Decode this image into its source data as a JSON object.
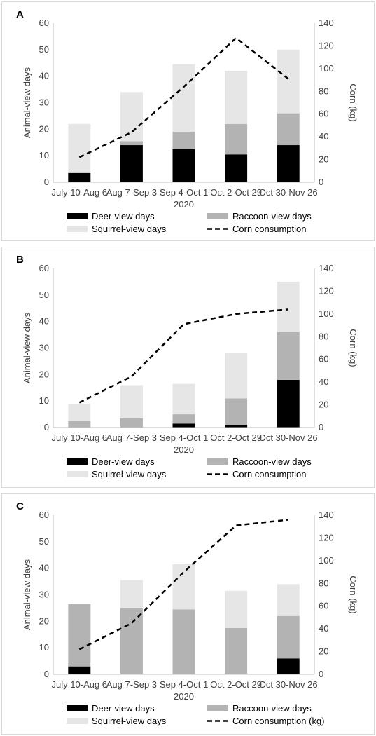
{
  "colors": {
    "deer": "#000000",
    "raccoon": "#b3b3b3",
    "squirrel": "#e6e6e6",
    "corn": "#000000",
    "axis": "#bfbfbf"
  },
  "chart_data": [
    {
      "type": "bar",
      "panel_label": "A",
      "categories": [
        "July 10-Aug 6",
        "Aug 7-Sep 3",
        "Sep 4-Oct 1",
        "Oct 2-Oct 29",
        "Oct 30-Nov 26"
      ],
      "xlabel": "2020",
      "ylabel": "Animal-view days",
      "y2label": "Corn (kg)",
      "ylim": [
        0,
        60
      ],
      "yticks": [
        0,
        10,
        20,
        30,
        40,
        50,
        60
      ],
      "y2lim": [
        0,
        140
      ],
      "y2ticks": [
        0,
        20,
        40,
        60,
        80,
        100,
        120,
        140
      ],
      "stacked": true,
      "series": [
        {
          "name": "Deer-view days",
          "values": [
            3.5,
            14,
            12.5,
            10.5,
            14
          ]
        },
        {
          "name": "Raccoon-view days",
          "values": [
            0,
            1.5,
            6.5,
            11.5,
            12
          ]
        },
        {
          "name": "Squirrel-view days",
          "values": [
            18.5,
            18.5,
            25.5,
            20,
            24
          ]
        }
      ],
      "line_series": {
        "name": "Corn consumption",
        "axis": "right",
        "style": "dashed",
        "values": [
          22,
          44,
          84,
          127,
          91
        ]
      },
      "legend": [
        "Deer-view days",
        "Raccoon-view days",
        "Squirrel-view days",
        "Corn consumption"
      ],
      "legend_position": "bottom",
      "grid": false
    },
    {
      "type": "bar",
      "panel_label": "B",
      "categories": [
        "July 10-Aug 6",
        "Aug 7-Sep 3",
        "Sep 4-Oct 1",
        "Oct 2-Oct 29",
        "Oct 30-Nov 26"
      ],
      "xlabel": "2020",
      "ylabel": "Animal-view days",
      "y2label": "Corn (kg)",
      "ylim": [
        0,
        60
      ],
      "yticks": [
        0,
        10,
        20,
        30,
        40,
        50,
        60
      ],
      "y2lim": [
        0,
        140
      ],
      "y2ticks": [
        0,
        20,
        40,
        60,
        80,
        100,
        120,
        140
      ],
      "stacked": true,
      "series": [
        {
          "name": "Deer-view days",
          "values": [
            0,
            0,
            1.5,
            1,
            18
          ]
        },
        {
          "name": "Raccoon-view days",
          "values": [
            2.5,
            3.5,
            3.5,
            10,
            18
          ]
        },
        {
          "name": "Squirrel-view days",
          "values": [
            6.5,
            12.5,
            11.5,
            17,
            19
          ]
        }
      ],
      "line_series": {
        "name": "Corn consumption",
        "axis": "right",
        "style": "dashed",
        "values": [
          22,
          45,
          91,
          100,
          104
        ]
      },
      "legend": [
        "Deer-view days",
        "Raccoon-view days",
        "Squirrel-view days",
        "Corn consumption"
      ],
      "legend_position": "bottom",
      "grid": false
    },
    {
      "type": "bar",
      "panel_label": "C",
      "categories": [
        "July 10-Aug 6",
        "Aug 7-Sep 3",
        "Sep 4-Oct 1",
        "Oct 2-Oct 29",
        "Oct 30-Nov 26"
      ],
      "xlabel": "2020",
      "ylabel": "Animal-view days",
      "y2label": "Corn (kg)",
      "ylim": [
        0,
        60
      ],
      "yticks": [
        0,
        10,
        20,
        30,
        40,
        50,
        60
      ],
      "y2lim": [
        0,
        140
      ],
      "y2ticks": [
        0,
        20,
        40,
        60,
        80,
        100,
        120,
        140
      ],
      "stacked": true,
      "series": [
        {
          "name": "Deer-view days",
          "values": [
            3,
            0,
            0,
            0,
            6
          ]
        },
        {
          "name": "Raccoon-view days",
          "values": [
            23.5,
            25,
            24.5,
            17.5,
            16
          ]
        },
        {
          "name": "Squirrel-view days",
          "values": [
            0,
            10.5,
            17,
            14,
            12
          ]
        }
      ],
      "line_series": {
        "name": "Corn consumption (kg)",
        "axis": "right",
        "style": "dashed",
        "values": [
          22,
          45,
          90,
          131,
          136
        ]
      },
      "legend": [
        "Deer-view days",
        "Raccoon-view days",
        "Squirrel-view days",
        "Corn consumption (kg)"
      ],
      "legend_position": "bottom",
      "grid": false
    }
  ]
}
